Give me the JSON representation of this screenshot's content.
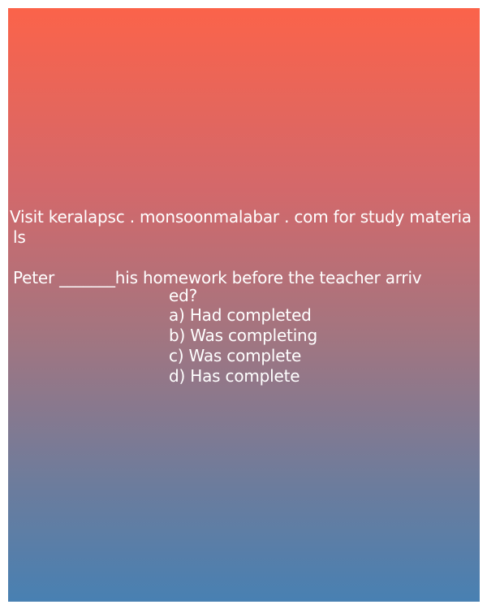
{
  "promo": {
    "line1": "Visit keralapsc . monsoonmalabar . com for study materia",
    "line2": "ls"
  },
  "question": {
    "line1": "Peter _______his homework before the teacher arriv",
    "line2": "ed?"
  },
  "options": [
    "a) Had completed",
    "b) Was completing",
    "c) Was complete",
    "d) Has complete"
  ],
  "colors": {
    "gradient_top": "#fb634a",
    "gradient_bottom": "#4880b2",
    "text": "#ffffff"
  }
}
